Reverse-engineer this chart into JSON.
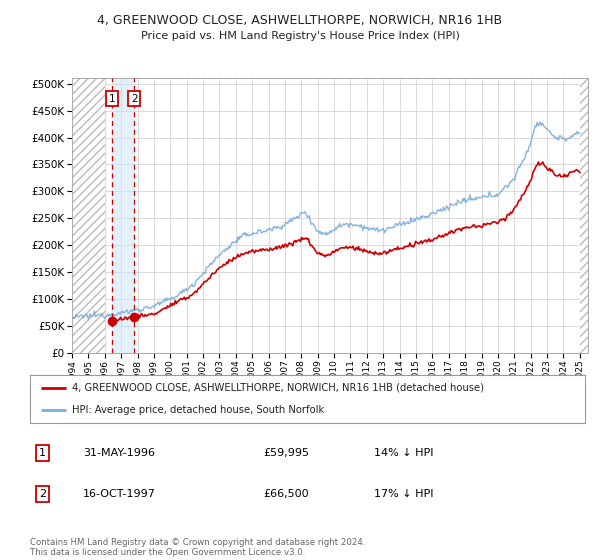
{
  "title1": "4, GREENWOOD CLOSE, ASHWELLTHORPE, NORWICH, NR16 1HB",
  "title2": "Price paid vs. HM Land Registry's House Price Index (HPI)",
  "sale1_date": 1996.42,
  "sale1_price": 59995,
  "sale2_date": 1997.79,
  "sale2_price": 66500,
  "legend_line1": "4, GREENWOOD CLOSE, ASHWELLTHORPE, NORWICH, NR16 1HB (detached house)",
  "legend_line2": "HPI: Average price, detached house, South Norfolk",
  "footer": "Contains HM Land Registry data © Crown copyright and database right 2024.\nThis data is licensed under the Open Government Licence v3.0.",
  "hpi_color": "#7aabdc",
  "price_color": "#cc0000",
  "background_color": "#ffffff",
  "grid_color": "#cccccc",
  "hatch_color": "#bbbbbb",
  "ylim_max": 510000,
  "ylim_min": 0,
  "xmin": 1994.0,
  "xmax": 2025.5,
  "data_xstart": 1994.0,
  "data_xend": 2025.0,
  "hatch_left_end": 1996.0,
  "hatch_right_start": 2025.0,
  "shade_x1": 1996.42,
  "shade_x2": 1997.79
}
